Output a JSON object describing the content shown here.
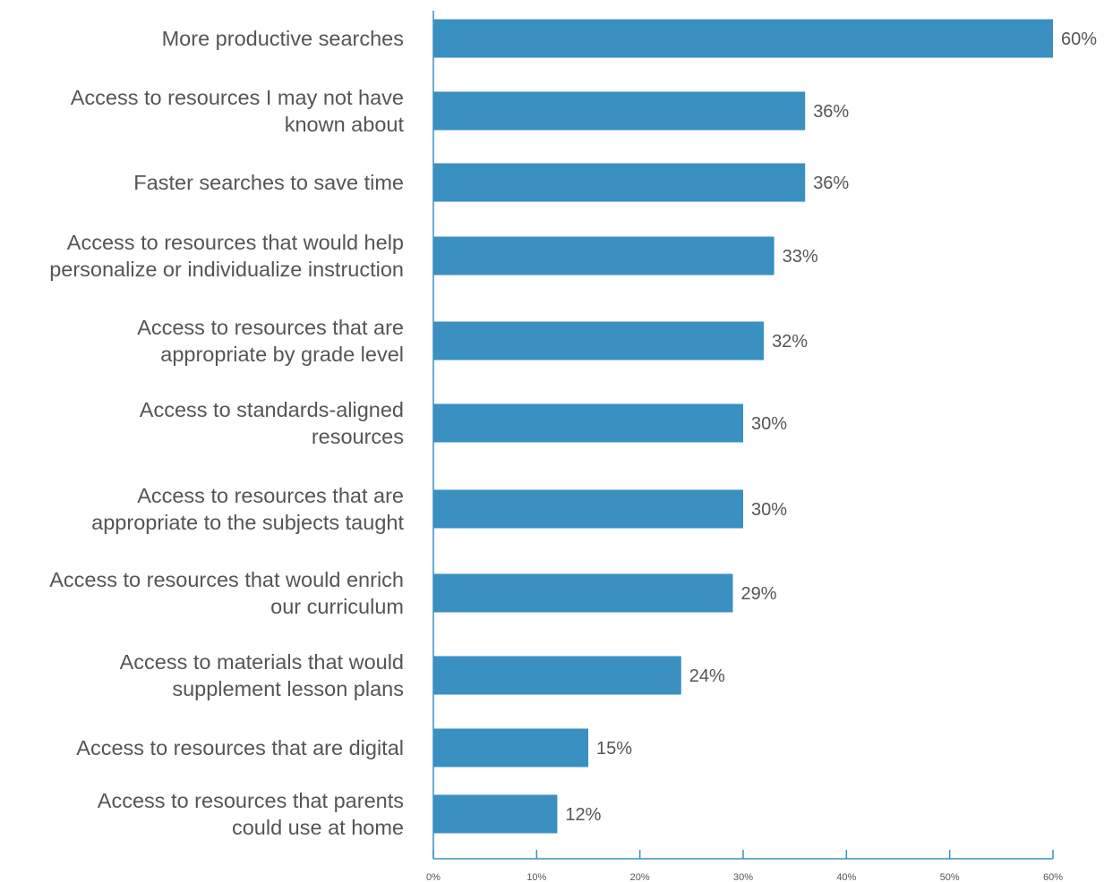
{
  "chart_data": {
    "type": "bar",
    "orientation": "horizontal",
    "categories": [
      [
        "More productive searches"
      ],
      [
        "Access to resources I may not have",
        "known about"
      ],
      [
        "Faster searches to save time"
      ],
      [
        "Access to resources that would help",
        "personalize or individualize instruction"
      ],
      [
        "Access to resources that are",
        "appropriate by grade level"
      ],
      [
        "Access to standards-aligned",
        "resources"
      ],
      [
        "Access to resources that are",
        "appropriate to the subjects taught"
      ],
      [
        "Access to resources that would enrich",
        "our curriculum"
      ],
      [
        "Access to materials that would",
        "supplement lesson plans"
      ],
      [
        "Access to resources that are digital"
      ],
      [
        "Access to resources that parents",
        "could use at home"
      ]
    ],
    "values": [
      60,
      36,
      36,
      33,
      32,
      30,
      30,
      29,
      24,
      15,
      12
    ],
    "value_labels": [
      "60%",
      "36%",
      "36%",
      "33%",
      "32%",
      "30%",
      "30%",
      "29%",
      "24%",
      "15%",
      "12%"
    ],
    "xlim": [
      0,
      60
    ],
    "x_ticks": [
      0,
      10,
      20,
      30,
      40,
      50,
      60
    ],
    "x_tick_labels": [
      "0%",
      "10%",
      "20%",
      "30%",
      "40%",
      "50%",
      "60%"
    ],
    "title": "",
    "xlabel": "",
    "ylabel": "",
    "grid": false,
    "legend": "none",
    "colors": {
      "bar": "#3990c1",
      "axis": "#3990c1",
      "text": "#555555"
    }
  }
}
